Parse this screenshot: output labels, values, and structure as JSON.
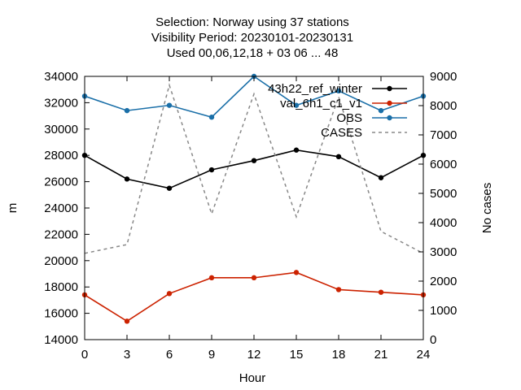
{
  "chart_data": {
    "type": "line",
    "title": [
      "Selection: Norway using    37 stations",
      "Visibility   Period: 20230101-20230131",
      "Used  00,06,12,18  + 03 06 ... 48"
    ],
    "xlabel": "Hour",
    "ylabel": "m",
    "y2label": "No cases",
    "x": [
      0,
      3,
      6,
      9,
      12,
      15,
      18,
      21,
      24
    ],
    "xlim": [
      0,
      24
    ],
    "ylim": [
      14000,
      34000
    ],
    "y2lim": [
      0,
      9000
    ],
    "xticks": [
      "0",
      "3",
      "6",
      "9",
      "12",
      "15",
      "18",
      "21",
      "24"
    ],
    "yticks": [
      "14000",
      "16000",
      "18000",
      "20000",
      "22000",
      "24000",
      "26000",
      "28000",
      "30000",
      "32000",
      "34000"
    ],
    "y2ticks": [
      "0",
      "1000",
      "2000",
      "3000",
      "4000",
      "5000",
      "6000",
      "7000",
      "8000",
      "9000"
    ],
    "legend_position": "top-right",
    "grid": false,
    "series": [
      {
        "name": "43h22_ref_winter",
        "color": "#000000",
        "axis": "left",
        "style": "solid-markers",
        "values": [
          28000,
          26200,
          25500,
          26900,
          27600,
          28400,
          27900,
          26300,
          28000
        ]
      },
      {
        "name": "val_6h1_c1_v1",
        "color": "#cc2200",
        "axis": "left",
        "style": "solid-markers",
        "values": [
          17400,
          15400,
          17500,
          18700,
          18700,
          19100,
          17800,
          17600,
          17400
        ]
      },
      {
        "name": "OBS",
        "color": "#1a6fa8",
        "axis": "left",
        "style": "solid-markers",
        "values": [
          32500,
          31400,
          31800,
          30900,
          34000,
          31800,
          32900,
          31400,
          32500
        ]
      },
      {
        "name": "CASES",
        "color": "#888888",
        "axis": "right",
        "style": "dashed",
        "values": [
          2950,
          3250,
          8700,
          4300,
          8400,
          4200,
          8300,
          3700,
          2950
        ]
      }
    ]
  }
}
